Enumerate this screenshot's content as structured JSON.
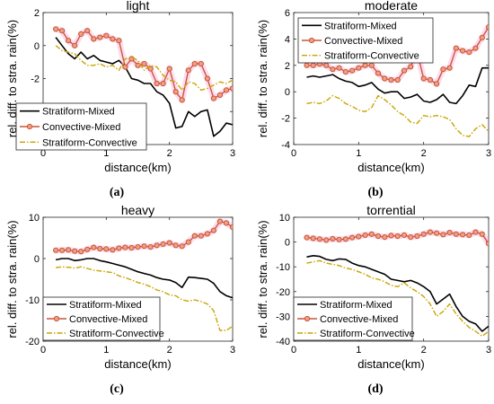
{
  "colors": {
    "strat_mixed": "#000000",
    "conv_mixed": "#c8553a",
    "conv_band": "#ff9ad1",
    "strat_conv": "#c9a400"
  },
  "chart_data": [
    {
      "type": "line",
      "title": "light",
      "caption": "(a)",
      "xlabel": "distance(km)",
      "ylabel": "rel. diff. to stra. rain(%)",
      "xlim": [
        0,
        3
      ],
      "ylim": [
        -6,
        2
      ],
      "xticks": [
        "0",
        "1",
        "2",
        "3"
      ],
      "yticks": [
        "2",
        "0",
        "-2",
        "-4",
        "-6"
      ],
      "legend_position": "bottom-left",
      "grid": false,
      "x": [
        0.2,
        0.3,
        0.4,
        0.5,
        0.6,
        0.7,
        0.8,
        0.9,
        1.0,
        1.1,
        1.2,
        1.3,
        1.4,
        1.5,
        1.6,
        1.7,
        1.8,
        1.9,
        2.0,
        2.1,
        2.2,
        2.3,
        2.4,
        2.5,
        2.6,
        2.7,
        2.8,
        2.9,
        3.0
      ],
      "series": [
        {
          "name": "Stratiform-Mixed",
          "values": [
            0.5,
            0.0,
            -0.5,
            -0.8,
            -0.4,
            -0.8,
            -0.6,
            -0.9,
            -1.0,
            -1.1,
            -0.9,
            -1.3,
            -2.0,
            -2.1,
            -2.3,
            -2.3,
            -2.8,
            -3.0,
            -3.5,
            -5.0,
            -4.9,
            -4.0,
            -4.3,
            -4.0,
            -3.9,
            -5.5,
            -5.2,
            -4.7,
            -4.8
          ]
        },
        {
          "name": "Convective-Mixed",
          "values": [
            1.0,
            0.9,
            0.3,
            0.0,
            0.7,
            0.9,
            0.4,
            0.5,
            0.6,
            0.4,
            0.3,
            -1.3,
            -0.8,
            -1.2,
            -1.1,
            -1.4,
            -2.3,
            -2.3,
            -1.4,
            -2.8,
            -3.3,
            -1.5,
            -1.1,
            -1.1,
            -2.0,
            -3.2,
            -3.0,
            -2.7,
            -2.6
          ]
        },
        {
          "name": "Stratiform-Convective",
          "values": [
            0.0,
            -0.3,
            -0.4,
            -0.5,
            -0.9,
            -1.2,
            -1.2,
            -1.1,
            -1.3,
            -1.2,
            -1.5,
            -0.8,
            -0.7,
            -0.9,
            -1.5,
            -1.2,
            -1.3,
            -1.8,
            -2.1,
            -2.2,
            -2.7,
            -2.2,
            -2.3,
            -2.7,
            -2.6,
            -2.4,
            -2.2,
            -2.3,
            -2.1
          ]
        }
      ]
    },
    {
      "type": "line",
      "title": "moderate",
      "caption": "(b)",
      "xlabel": "distance(km)",
      "ylabel": "rel. diff. to stra. rain(%)",
      "xlim": [
        0,
        3
      ],
      "ylim": [
        -4,
        6
      ],
      "xticks": [
        "0",
        "1",
        "2",
        "3"
      ],
      "yticks": [
        "6",
        "4",
        "2",
        "0",
        "-2",
        "-4"
      ],
      "legend_position": "top-left",
      "grid": false,
      "x": [
        0.2,
        0.3,
        0.4,
        0.5,
        0.6,
        0.7,
        0.8,
        0.9,
        1.0,
        1.1,
        1.2,
        1.3,
        1.4,
        1.5,
        1.6,
        1.7,
        1.8,
        1.9,
        2.0,
        2.1,
        2.2,
        2.3,
        2.4,
        2.5,
        2.6,
        2.7,
        2.8,
        2.9,
        3.0
      ],
      "series": [
        {
          "name": "Stratiform-Mixed",
          "values": [
            1.1,
            1.2,
            1.1,
            1.2,
            1.3,
            1.0,
            0.8,
            0.7,
            0.4,
            0.5,
            0.7,
            0.2,
            -0.1,
            0.0,
            0.0,
            -0.5,
            -0.4,
            -0.2,
            -0.7,
            -0.8,
            -0.6,
            -0.2,
            -0.8,
            -0.9,
            -0.3,
            0.5,
            0.4,
            1.8,
            1.8
          ]
        },
        {
          "name": "Convective-Mixed",
          "values": [
            2.0,
            2.0,
            2.1,
            2.0,
            1.7,
            1.8,
            1.5,
            1.6,
            1.8,
            2.0,
            2.0,
            1.4,
            1.0,
            0.9,
            0.9,
            1.6,
            1.9,
            3.0,
            1.0,
            0.9,
            0.6,
            1.7,
            1.8,
            3.3,
            3.1,
            3.0,
            3.3,
            4.1,
            4.9
          ]
        },
        {
          "name": "Stratiform-Convective",
          "values": [
            -0.9,
            -0.8,
            -0.9,
            -0.7,
            -0.3,
            -0.5,
            -0.9,
            -1.1,
            -1.4,
            -1.5,
            -1.2,
            -0.3,
            -0.6,
            -1.0,
            -1.5,
            -1.8,
            -2.3,
            -2.4,
            -1.8,
            -1.9,
            -1.8,
            -1.9,
            -2.1,
            -2.8,
            -3.3,
            -3.4,
            -2.8,
            -2.5,
            -3.0
          ]
        }
      ]
    },
    {
      "type": "line",
      "title": "heavy",
      "caption": "(c)",
      "xlabel": "distance(km)",
      "ylabel": "rel. diff. to stra. rain(%)",
      "xlim": [
        0,
        3
      ],
      "ylim": [
        -20,
        10
      ],
      "xticks": [
        "0",
        "1",
        "2",
        "3"
      ],
      "yticks": [
        "10",
        "0",
        "-10",
        "-20"
      ],
      "legend_position": "bottom-left",
      "grid": false,
      "x": [
        0.2,
        0.3,
        0.4,
        0.5,
        0.6,
        0.7,
        0.8,
        0.9,
        1.0,
        1.1,
        1.2,
        1.3,
        1.4,
        1.5,
        1.6,
        1.7,
        1.8,
        1.9,
        2.0,
        2.1,
        2.2,
        2.3,
        2.4,
        2.5,
        2.6,
        2.7,
        2.8,
        2.9,
        3.0
      ],
      "series": [
        {
          "name": "Stratiform-Mixed",
          "values": [
            -0.3,
            0.0,
            0.0,
            -0.5,
            -0.3,
            0.0,
            0.0,
            -0.5,
            -0.8,
            -1.2,
            -1.6,
            -2.0,
            -2.6,
            -3.2,
            -3.6,
            -4.0,
            -4.6,
            -5.0,
            -5.2,
            -5.8,
            -7.0,
            -4.5,
            -4.6,
            -4.8,
            -5.0,
            -6.0,
            -8.0,
            -9.0,
            -9.5
          ]
        },
        {
          "name": "Convective-Mixed",
          "values": [
            2.0,
            2.0,
            2.1,
            1.8,
            1.7,
            2.2,
            2.7,
            2.4,
            2.3,
            2.1,
            2.5,
            2.7,
            2.6,
            2.8,
            3.0,
            2.8,
            3.2,
            3.5,
            3.8,
            3.2,
            3.0,
            4.0,
            5.5,
            5.5,
            6.0,
            6.8,
            9.0,
            8.6,
            7.6
          ]
        },
        {
          "name": "Stratiform-Convective",
          "values": [
            -2.2,
            -2.0,
            -2.1,
            -2.3,
            -2.0,
            -2.4,
            -2.8,
            -3.0,
            -3.2,
            -3.4,
            -4.2,
            -4.6,
            -5.2,
            -5.8,
            -6.2,
            -6.8,
            -7.6,
            -8.0,
            -8.8,
            -9.0,
            -10.0,
            -10.3,
            -10.0,
            -10.4,
            -11.0,
            -12.6,
            -17.4,
            -17.4,
            -16.4
          ]
        }
      ]
    },
    {
      "type": "line",
      "title": "torrential",
      "caption": "(d)",
      "xlabel": "distance(km)",
      "ylabel": "rel. diff. to stra. rain(%)",
      "xlim": [
        0,
        3
      ],
      "ylim": [
        -40,
        10
      ],
      "xticks": [
        "0",
        "1",
        "2",
        "3"
      ],
      "yticks": [
        "10",
        "0",
        "-10",
        "-20",
        "-30",
        "-40"
      ],
      "legend_position": "bottom-left",
      "grid": false,
      "x": [
        0.2,
        0.3,
        0.4,
        0.5,
        0.6,
        0.7,
        0.8,
        0.9,
        1.0,
        1.1,
        1.2,
        1.3,
        1.4,
        1.5,
        1.6,
        1.7,
        1.8,
        1.9,
        2.0,
        2.1,
        2.2,
        2.3,
        2.4,
        2.5,
        2.6,
        2.7,
        2.8,
        2.9,
        3.0
      ],
      "series": [
        {
          "name": "Stratiform-Mixed",
          "values": [
            -6.0,
            -5.5,
            -5.8,
            -7.0,
            -7.5,
            -6.8,
            -7.0,
            -8.5,
            -9.5,
            -10.0,
            -11.0,
            -12.0,
            -13.0,
            -15.0,
            -15.5,
            -16.0,
            -15.5,
            -16.5,
            -18.0,
            -20.0,
            -25.0,
            -23.0,
            -21.0,
            -26.0,
            -30.0,
            -32.0,
            -33.0,
            -36.0,
            -34.0
          ]
        },
        {
          "name": "Convective-Mixed",
          "values": [
            1.8,
            1.5,
            1.2,
            0.8,
            1.3,
            1.0,
            1.2,
            1.8,
            2.2,
            2.8,
            3.2,
            2.4,
            2.0,
            2.6,
            2.4,
            2.8,
            2.0,
            2.4,
            3.2,
            4.0,
            3.6,
            3.0,
            3.8,
            3.2,
            3.0,
            2.8,
            4.0,
            3.2,
            -0.6
          ]
        },
        {
          "name": "Stratiform-Convective",
          "values": [
            -8.5,
            -8.0,
            -7.5,
            -8.5,
            -9.0,
            -9.5,
            -10.5,
            -11.0,
            -12.0,
            -13.0,
            -14.5,
            -15.0,
            -16.0,
            -17.5,
            -18.0,
            -16.5,
            -18.5,
            -20.0,
            -22.0,
            -25.0,
            -30.0,
            -28.0,
            -25.0,
            -29.0,
            -32.0,
            -34.5,
            -36.0,
            -38.0,
            -36.0
          ]
        }
      ]
    }
  ]
}
